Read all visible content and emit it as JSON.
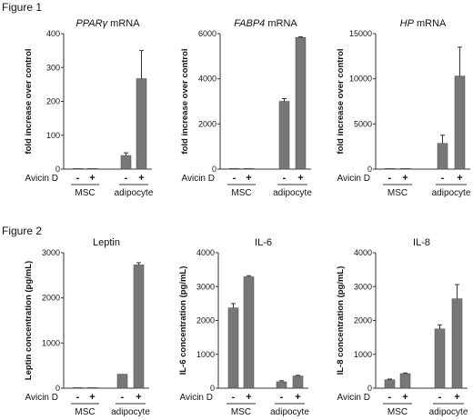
{
  "figures": [
    {
      "label": "Figure 1"
    },
    {
      "label": "Figure 2"
    }
  ],
  "bar_color": "#777777",
  "chart_data": [
    {
      "type": "bar",
      "figure": 0,
      "title_italic": "PPARγ",
      "title_rest": " mRNA",
      "ylabel": "fold increase over control",
      "ylim": [
        0,
        400
      ],
      "yticks": [
        "0",
        "100",
        "200",
        "300",
        "400"
      ],
      "ytick_values": [
        0,
        100,
        200,
        300,
        400
      ],
      "condition_label": "Avicin D",
      "signs": [
        "-",
        "+",
        "-",
        "+"
      ],
      "groups": [
        "MSC",
        "adipocyte"
      ],
      "values": [
        1,
        1,
        40,
        267
      ],
      "errors": [
        0,
        0,
        8,
        83
      ]
    },
    {
      "type": "bar",
      "figure": 0,
      "title_italic": "FABP4",
      "title_rest": " mRNA",
      "ylabel": "fold increase over control",
      "ylim": [
        0,
        6000
      ],
      "yticks": [
        "0",
        "2000",
        "4000",
        "6000"
      ],
      "ytick_values": [
        0,
        2000,
        4000,
        6000
      ],
      "condition_label": "Avicin D",
      "signs": [
        "-",
        "+",
        "-",
        "+"
      ],
      "groups": [
        "MSC",
        "adipocyte"
      ],
      "values": [
        5,
        5,
        3000,
        5830
      ],
      "errors": [
        0,
        0,
        120,
        30
      ]
    },
    {
      "type": "bar",
      "figure": 0,
      "title_italic": "HP",
      "title_rest": " mRNA",
      "ylabel": "fold increase over control",
      "ylim": [
        0,
        15000
      ],
      "yticks": [
        "0",
        "5000",
        "10000",
        "15000"
      ],
      "ytick_values": [
        0,
        5000,
        10000,
        15000
      ],
      "condition_label": "Avicin D",
      "signs": [
        "-",
        "+",
        "-",
        "+"
      ],
      "groups": [
        "MSC",
        "adipocyte"
      ],
      "values": [
        30,
        30,
        2850,
        10300
      ],
      "errors": [
        0,
        0,
        900,
        3200
      ]
    },
    {
      "type": "bar",
      "figure": 1,
      "title_italic": "",
      "title_rest": "Leptin",
      "ylabel": "Leptin concentration (pg/mL)",
      "ylim": [
        0,
        3000
      ],
      "yticks": [
        "0",
        "1000",
        "2000",
        "3000"
      ],
      "ytick_values": [
        0,
        1000,
        2000,
        3000
      ],
      "condition_label": "Avicin D",
      "signs": [
        "-",
        "+",
        "-",
        "+"
      ],
      "groups": [
        "MSC",
        "adipocyte"
      ],
      "values": [
        10,
        10,
        310,
        2730
      ],
      "errors": [
        0,
        0,
        0,
        50
      ]
    },
    {
      "type": "bar",
      "figure": 1,
      "title_italic": "",
      "title_rest": "IL-6",
      "ylabel": "IL-6 concentration (pg/mL)",
      "ylim": [
        0,
        4000
      ],
      "yticks": [
        "0",
        "1000",
        "2000",
        "3000",
        "4000"
      ],
      "ytick_values": [
        0,
        1000,
        2000,
        3000,
        4000
      ],
      "condition_label": "Avicin D",
      "signs": [
        "-",
        "+",
        "-",
        "+"
      ],
      "groups": [
        "MSC",
        "adipocyte"
      ],
      "values": [
        2370,
        3290,
        190,
        360
      ],
      "errors": [
        130,
        30,
        30,
        20
      ]
    },
    {
      "type": "bar",
      "figure": 1,
      "title_italic": "",
      "title_rest": "IL-8",
      "ylabel": "IL-8 concentration (pg/mL)",
      "ylim": [
        0,
        4000
      ],
      "yticks": [
        "0",
        "1000",
        "2000",
        "3000",
        "4000"
      ],
      "ytick_values": [
        0,
        1000,
        2000,
        3000,
        4000
      ],
      "condition_label": "Avicin D",
      "signs": [
        "-",
        "+",
        "-",
        "+"
      ],
      "groups": [
        "MSC",
        "adipocyte"
      ],
      "values": [
        250,
        430,
        1750,
        2640
      ],
      "errors": [
        20,
        20,
        120,
        420
      ]
    }
  ]
}
